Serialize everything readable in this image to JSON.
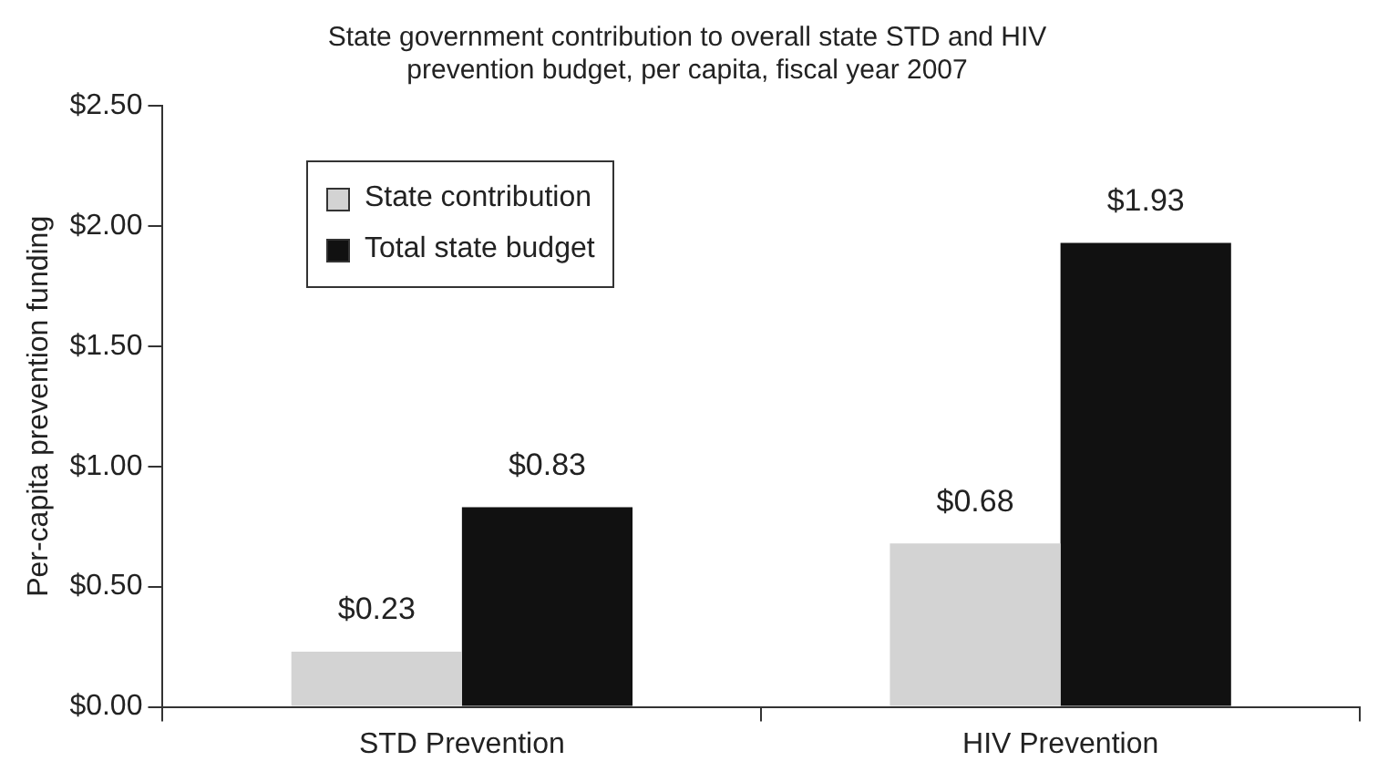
{
  "chart_data": {
    "type": "bar",
    "title": [
      "State government contribution to overall state STD and HIV",
      "prevention budget, per capita, fiscal year 2007"
    ],
    "ylabel": "Per-capita prevention funding",
    "categories": [
      "STD Prevention",
      "HIV Prevention"
    ],
    "series": [
      {
        "name": "State contribution",
        "color": "#d3d3d3",
        "values": [
          0.23,
          0.68
        ],
        "value_labels": [
          "$0.23",
          "$0.68"
        ]
      },
      {
        "name": "Total state budget",
        "color": "#111111",
        "values": [
          0.83,
          1.93
        ],
        "value_labels": [
          "$0.83",
          "$1.93"
        ]
      }
    ],
    "ylim": [
      0,
      2.5
    ],
    "yticks": [
      {
        "value": 0,
        "label": "$0.00"
      },
      {
        "value": 0.5,
        "label": "$0.50"
      },
      {
        "value": 1,
        "label": "$1.00"
      },
      {
        "value": 1.5,
        "label": "$1.50"
      },
      {
        "value": 2,
        "label": "$2.00"
      },
      {
        "value": 2.5,
        "label": "$2.50"
      }
    ],
    "grid": false,
    "legend": "top left"
  }
}
